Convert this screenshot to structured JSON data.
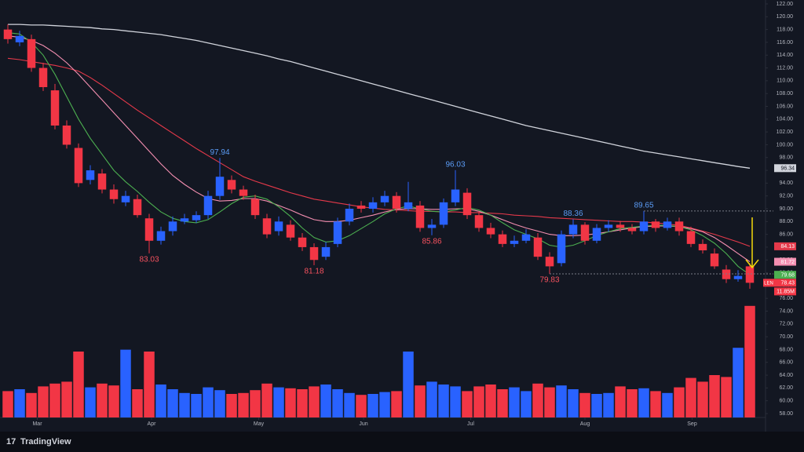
{
  "chart_data": {
    "type": "candlestick",
    "symbol": "LEN",
    "brand": "TradingView",
    "up_color": "#2962ff",
    "down_color": "#f23645",
    "open": [
      118,
      116,
      116.5,
      112,
      108.5,
      103,
      99.5,
      94.5,
      95.5,
      93,
      91,
      91.5,
      88.5,
      85,
      86.5,
      88,
      88.2,
      89,
      92,
      94.5,
      93,
      91.5,
      88.5,
      86.5,
      87.5,
      85.5,
      84,
      82.5,
      84.5,
      88,
      90.5,
      90,
      91,
      92,
      90,
      90.5,
      87,
      87.5,
      91,
      92.5,
      89,
      87,
      86,
      84.5,
      85,
      85.5,
      82.5,
      81.5,
      86,
      87.5,
      85,
      87,
      87.5,
      87,
      86.5,
      88,
      87,
      88,
      86.5,
      84.5,
      83,
      80.5,
      79,
      81
    ],
    "high": [
      118.8,
      117.8,
      117.2,
      112.8,
      109.5,
      103.8,
      100.2,
      96.8,
      96.2,
      93.8,
      92.8,
      92.2,
      89.2,
      87.2,
      88.8,
      89.2,
      89.6,
      92.8,
      97.94,
      95.2,
      93.6,
      92.2,
      89.2,
      88.8,
      88.2,
      86.2,
      84.6,
      84.8,
      88.6,
      90.8,
      91.2,
      91.8,
      92.8,
      92.6,
      94.2,
      91.2,
      88.4,
      91.6,
      96.03,
      93.2,
      89.6,
      87.8,
      86.6,
      85.8,
      86.8,
      86.2,
      83.2,
      86.6,
      88.36,
      87.9,
      87.6,
      88.2,
      88.1,
      87.6,
      89.65,
      88.4,
      88.6,
      88.6,
      87.2,
      85.2,
      83.8,
      81.2,
      80.4,
      81.5
    ],
    "low": [
      115.8,
      115.4,
      111.4,
      108.4,
      102.4,
      99.4,
      93.4,
      93.8,
      92.4,
      90.8,
      90.4,
      88.6,
      83.03,
      84.4,
      85.8,
      87.6,
      87.8,
      88.4,
      91.4,
      92.4,
      91.4,
      88.4,
      85.4,
      85.8,
      85,
      83.4,
      81.18,
      82,
      84,
      87.4,
      89.4,
      89.4,
      90.4,
      89.4,
      89.6,
      86.4,
      85.86,
      87,
      90.4,
      88.4,
      86.4,
      85.4,
      84,
      84,
      84.6,
      82,
      79.83,
      81,
      85.4,
      84.4,
      84.6,
      86.4,
      86.4,
      86,
      86,
      86.4,
      86.6,
      85.8,
      84,
      83,
      80.6,
      78.4,
      78.6,
      77.5
    ],
    "close": [
      116.5,
      117,
      112,
      109,
      103,
      100,
      94,
      96,
      93,
      91.5,
      92,
      89,
      85,
      86.5,
      88,
      88.5,
      89,
      92,
      95,
      93,
      92,
      89,
      86,
      88,
      85.5,
      84,
      82,
      84,
      88,
      90,
      90,
      91,
      92,
      90,
      91,
      87,
      87.5,
      91,
      93,
      89,
      87,
      86,
      84.5,
      85,
      86,
      82.5,
      81,
      86,
      87.5,
      85,
      87,
      87.5,
      87,
      86.5,
      88,
      87,
      88,
      86.5,
      84.5,
      83.5,
      81,
      79,
      79.5,
      78.43
    ],
    "high_labels": [
      97.94,
      96.03,
      88.36,
      89.65
    ],
    "low_labels": [
      83.03,
      81.18,
      85.86,
      79.83
    ],
    "high_label_color": "#5b9cf6",
    "low_label_color": "#f7525f",
    "volume": {
      "values": [
        2.8,
        3.0,
        2.6,
        3.3,
        3.6,
        3.8,
        7.0,
        3.2,
        3.6,
        3.4,
        7.2,
        3.0,
        7.0,
        3.5,
        3.0,
        2.6,
        2.5,
        3.2,
        2.9,
        2.5,
        2.6,
        2.9,
        3.6,
        3.2,
        3.1,
        3.0,
        3.3,
        3.5,
        3.0,
        2.6,
        2.4,
        2.5,
        2.7,
        2.8,
        7.0,
        3.4,
        3.8,
        3.5,
        3.3,
        2.8,
        3.3,
        3.5,
        3.0,
        3.2,
        2.8,
        3.6,
        3.2,
        3.4,
        3.0,
        2.6,
        2.5,
        2.6,
        3.3,
        3.0,
        3.1,
        2.8,
        2.6,
        3.2,
        4.2,
        3.8,
        4.5,
        4.3,
        7.4,
        11.85
      ],
      "last_label": "11.85M",
      "lim": [
        0,
        12
      ]
    },
    "series": [
      {
        "color": "#d1d4dc",
        "values": [
          118.8,
          118.8,
          118.7,
          118.7,
          118.6,
          118.5,
          118.4,
          118.3,
          118.1,
          118.0,
          117.8,
          117.6,
          117.4,
          117.2,
          116.9,
          116.6,
          116.3,
          115.9,
          115.5,
          115.1,
          114.7,
          114.3,
          113.9,
          113.4,
          113.0,
          112.5,
          112.0,
          111.5,
          111.0,
          110.5,
          110.0,
          109.5,
          109.0,
          108.5,
          108.0,
          107.5,
          107.0,
          106.5,
          106.0,
          105.5,
          105.0,
          104.5,
          104.0,
          103.5,
          103.0,
          102.6,
          102.2,
          101.8,
          101.4,
          101.0,
          100.6,
          100.2,
          99.8,
          99.4,
          99.0,
          98.7,
          98.4,
          98.1,
          97.8,
          97.5,
          97.2,
          96.9,
          96.6,
          96.34
        ]
      },
      {
        "color": "#e5394a",
        "values": [
          113.5,
          113.3,
          113.0,
          112.7,
          112.4,
          112.0,
          111.5,
          110.5,
          109.3,
          108.0,
          106.7,
          105.4,
          104.2,
          103.0,
          101.8,
          100.6,
          99.4,
          98.3,
          97.2,
          96.1,
          95.0,
          94.3,
          93.7,
          93.1,
          92.5,
          92.0,
          91.5,
          91.2,
          90.9,
          90.6,
          90.3,
          90.1,
          89.9,
          89.8,
          89.7,
          89.6,
          89.6,
          89.5,
          89.5,
          89.4,
          89.4,
          89.3,
          89.2,
          89.0,
          88.9,
          88.8,
          88.6,
          88.5,
          88.4,
          88.3,
          88.2,
          88.1,
          88.0,
          88.0,
          87.9,
          87.8,
          87.6,
          87.4,
          87.0,
          86.5,
          86.0,
          85.4,
          84.8,
          84.13
        ]
      },
      {
        "color": "#f48fb1",
        "values": [
          117.0,
          116.8,
          116.3,
          115.5,
          114.3,
          112.8,
          111.0,
          109.0,
          107.0,
          105.0,
          103.0,
          101.0,
          99.0,
          97.0,
          95.2,
          93.8,
          92.6,
          91.6,
          91.2,
          91.3,
          91.6,
          91.6,
          91.2,
          90.5,
          89.8,
          89.0,
          88.3,
          88.0,
          88.0,
          88.2,
          88.6,
          89.0,
          89.5,
          89.9,
          90.0,
          90.0,
          89.9,
          89.9,
          90.0,
          90.0,
          89.6,
          89.0,
          88.3,
          87.6,
          87.0,
          86.5,
          86.0,
          85.8,
          85.8,
          85.9,
          86.1,
          86.4,
          86.7,
          87.0,
          87.2,
          87.3,
          87.3,
          87.2,
          86.9,
          86.4,
          85.5,
          84.3,
          83.0,
          81.72
        ]
      },
      {
        "color": "#4caf50",
        "values": [
          117.5,
          117.3,
          116.0,
          114.0,
          111.0,
          107.5,
          104.0,
          101.0,
          98.5,
          96.0,
          94.2,
          92.7,
          91.0,
          89.5,
          88.5,
          88.0,
          87.8,
          88.3,
          89.5,
          90.8,
          91.8,
          92.0,
          91.5,
          90.3,
          88.8,
          87.0,
          85.5,
          84.8,
          85.0,
          85.8,
          86.9,
          88.0,
          89.2,
          90.0,
          90.4,
          90.0,
          89.6,
          89.5,
          89.8,
          90.2,
          89.8,
          89.0,
          87.8,
          86.7,
          86.0,
          85.3,
          84.3,
          84.0,
          84.3,
          85.0,
          85.8,
          86.4,
          86.9,
          87.1,
          87.3,
          87.4,
          87.4,
          87.2,
          86.7,
          85.8,
          84.6,
          83.0,
          81.0,
          79.68
        ]
      }
    ],
    "ylim": [
      58,
      122
    ],
    "yticks": [
      {
        "value": 58,
        "label": "58.00"
      },
      {
        "value": 60,
        "label": "60.00"
      },
      {
        "value": 62,
        "label": "62.00"
      },
      {
        "value": 64,
        "label": "64.00"
      },
      {
        "value": 66,
        "label": "66.00"
      },
      {
        "value": 68,
        "label": "68.00"
      },
      {
        "value": 70,
        "label": "70.00"
      },
      {
        "value": 72,
        "label": "72.00"
      },
      {
        "value": 74,
        "label": "74.00"
      },
      {
        "value": 76,
        "label": "76.00"
      },
      {
        "value": 78,
        "label": "78.00"
      },
      {
        "value": 80,
        "label": "80.00"
      },
      {
        "value": 82,
        "label": "82.00"
      },
      {
        "value": 84,
        "label": "84.00"
      },
      {
        "value": 86,
        "label": "86.00"
      },
      {
        "value": 88,
        "label": "88.00"
      },
      {
        "value": 90,
        "label": "90.00"
      },
      {
        "value": 92,
        "label": "92.00"
      },
      {
        "value": 94,
        "label": "94.00"
      },
      {
        "value": 96,
        "label": "96.00"
      },
      {
        "value": 98,
        "label": "98.00"
      },
      {
        "value": 100,
        "label": "100.00"
      },
      {
        "value": 102,
        "label": "102.00"
      },
      {
        "value": 104,
        "label": "104.00"
      },
      {
        "value": 106,
        "label": "106.00"
      },
      {
        "value": 108,
        "label": "108.00"
      },
      {
        "value": 110,
        "label": "110.00"
      },
      {
        "value": 112,
        "label": "112.00"
      },
      {
        "value": 114,
        "label": "114.00"
      },
      {
        "value": 116,
        "label": "116.00"
      },
      {
        "value": 118,
        "label": "118.00"
      },
      {
        "value": 120,
        "label": "120.00"
      },
      {
        "value": 122,
        "label": "122.00"
      }
    ],
    "xlim": [
      -0.667,
      64.333
    ],
    "xticks": [
      {
        "value": 2.5,
        "label": "Mar"
      },
      {
        "value": 12.2,
        "label": "Apr"
      },
      {
        "value": 21.3,
        "label": "May"
      },
      {
        "value": 30.2,
        "label": "Jun"
      },
      {
        "value": 39.3,
        "label": "Jul"
      },
      {
        "value": 49,
        "label": "Aug"
      },
      {
        "value": 58.1,
        "label": "Sep"
      }
    ],
    "grid": false
  }
}
